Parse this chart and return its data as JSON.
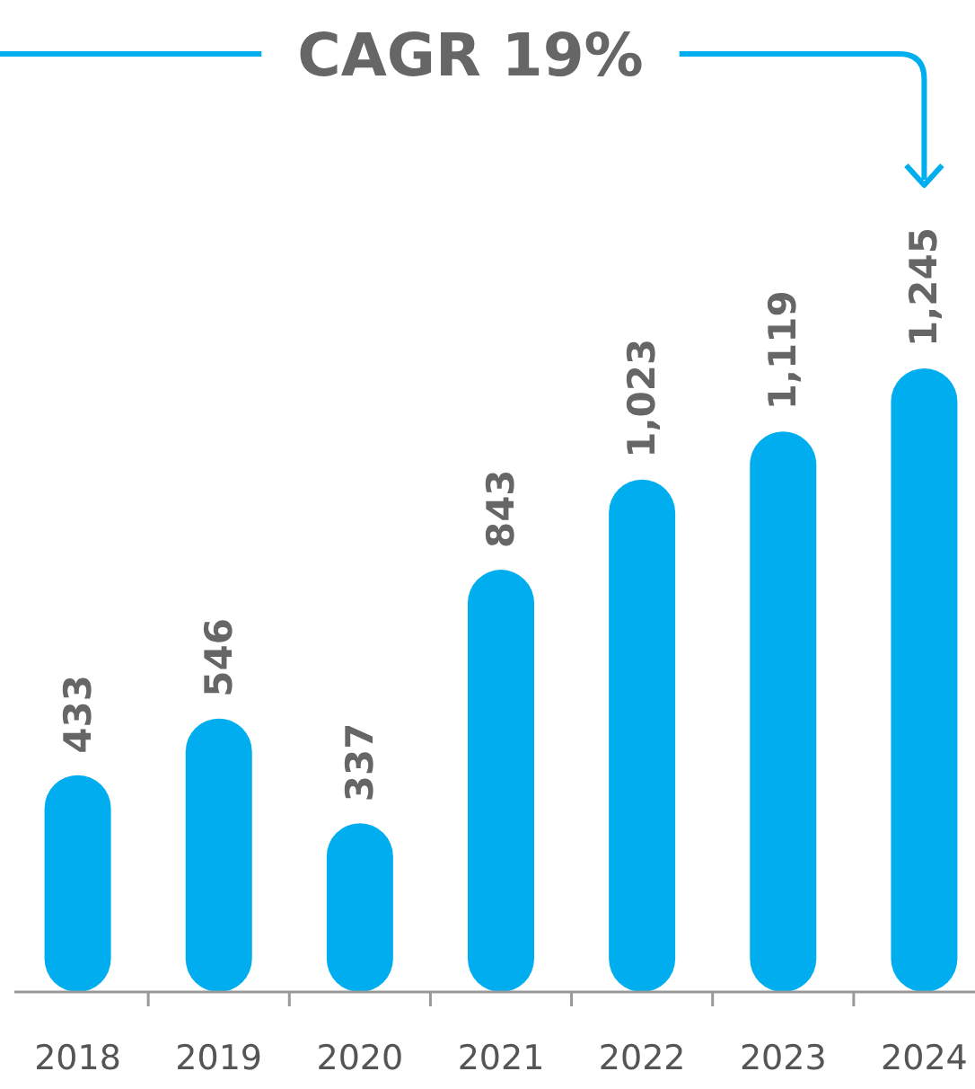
{
  "chart_data": {
    "type": "bar",
    "title": "CAGR 19%",
    "categories": [
      "2018",
      "2019",
      "2020",
      "2021",
      "2022",
      "2023",
      "2024"
    ],
    "values": [
      433,
      546,
      337,
      843,
      1023,
      1119,
      1245
    ],
    "value_labels": [
      "433",
      "546",
      "337",
      "843",
      "1,023",
      "1,119",
      "1,245"
    ],
    "color": "#00aeef"
  }
}
